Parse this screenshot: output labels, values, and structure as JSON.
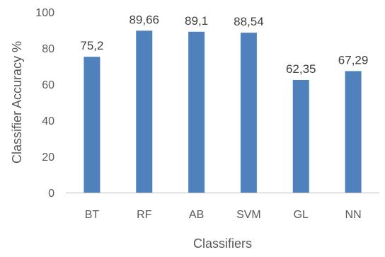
{
  "chart_data": {
    "type": "bar",
    "title": "",
    "xlabel": "Classifiers",
    "ylabel": "Classifier Accuracy %",
    "categories": [
      "BT",
      "RF",
      "AB",
      "SVM",
      "GL",
      "NN"
    ],
    "values": [
      75.2,
      89.66,
      89.1,
      88.54,
      62.35,
      67.29
    ],
    "value_labels": [
      "75,2",
      "89,66",
      "89,1",
      "88,54",
      "62,35",
      "67,29"
    ],
    "ylim": [
      0,
      100
    ],
    "yticks": [
      0,
      20,
      40,
      60,
      80,
      100
    ],
    "grid": false,
    "legend": "none",
    "bar_color": "#4F81BD",
    "axis_color": "#BFBFBF"
  }
}
